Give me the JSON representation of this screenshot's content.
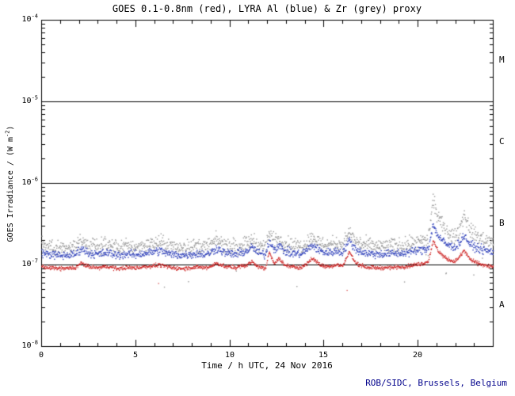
{
  "footer": "ROB/SIDC, Brussels, Belgium",
  "colors": {
    "background": "#ffffff",
    "axis": "#000000",
    "goes_red": "#cc2222",
    "lyra_al_blue": "#3344bb",
    "lyra_zr_grey": "#9a9a9a",
    "footer_text": "#00008b"
  },
  "chart_data": {
    "type": "scatter",
    "title": "GOES 0.1-0.8nm (red), LYRA Al (blue) & Zr (grey) proxy",
    "xlabel": "Time / h UTC, 24 Nov 2016",
    "ylabel": {
      "pre": "GOES Irradiance / (W m",
      "sup": "-2",
      "post": ")"
    },
    "xlim": [
      0,
      24
    ],
    "x_major_ticks": [
      0,
      5,
      10,
      15,
      20
    ],
    "x_minor_step_h": 1,
    "y_scale": "log",
    "y_exponent_range": [
      -8,
      -4
    ],
    "y_tick_exponents": [
      -4,
      -5,
      -6,
      -7,
      -8
    ],
    "goes_class_boundary_lines_exp": [
      -5,
      -6,
      -7
    ],
    "flare_classes": [
      {
        "label": "M",
        "mid_exp": -4.5
      },
      {
        "label": "C",
        "mid_exp": -5.5
      },
      {
        "label": "B",
        "mid_exp": -6.5
      },
      {
        "label": "A",
        "mid_exp": -7.5
      }
    ],
    "grid": false,
    "legend": "encoded in title colors",
    "series": [
      {
        "name": "LYRA Zr proxy",
        "color": "#9a9a9a",
        "jitter_log": 0.045,
        "step_h": 0.02,
        "dot": 1.4,
        "outlier_prob": 0.012,
        "keypoints": [
          [
            0,
            1.75e-07
          ],
          [
            0.5,
            1.68e-07
          ],
          [
            1,
            1.62e-07
          ],
          [
            1.8,
            1.68e-07
          ],
          [
            2.1,
            2e-07
          ],
          [
            2.5,
            1.75e-07
          ],
          [
            3,
            1.68e-07
          ],
          [
            3.5,
            1.78e-07
          ],
          [
            4,
            1.65e-07
          ],
          [
            4.5,
            1.7e-07
          ],
          [
            5,
            1.68e-07
          ],
          [
            5.5,
            1.75e-07
          ],
          [
            6.3,
            1.9e-07
          ],
          [
            6.8,
            1.7e-07
          ],
          [
            7.5,
            1.65e-07
          ],
          [
            8.2,
            1.72e-07
          ],
          [
            8.8,
            1.68e-07
          ],
          [
            9.3,
            2e-07
          ],
          [
            9.8,
            1.75e-07
          ],
          [
            10.3,
            1.7e-07
          ],
          [
            10.9,
            1.85e-07
          ],
          [
            11.2,
            2.05e-07
          ],
          [
            11.5,
            1.75e-07
          ],
          [
            11.9,
            1.68e-07
          ],
          [
            12.1,
            2.5e-07
          ],
          [
            12.35,
            1.95e-07
          ],
          [
            12.6,
            2.2e-07
          ],
          [
            12.9,
            1.85e-07
          ],
          [
            13.3,
            1.75e-07
          ],
          [
            13.8,
            1.7e-07
          ],
          [
            14.4,
            2.2e-07
          ],
          [
            14.8,
            1.85e-07
          ],
          [
            15.2,
            1.78e-07
          ],
          [
            15.7,
            1.85e-07
          ],
          [
            16.0,
            1.8e-07
          ],
          [
            16.35,
            2.5e-07
          ],
          [
            16.7,
            1.95e-07
          ],
          [
            17.2,
            1.75e-07
          ],
          [
            17.8,
            1.7e-07
          ],
          [
            18.5,
            1.72e-07
          ],
          [
            19.2,
            1.75e-07
          ],
          [
            19.8,
            1.85e-07
          ],
          [
            20.3,
            1.95e-07
          ],
          [
            20.55,
            2.1e-07
          ],
          [
            20.8,
            6.2e-07
          ],
          [
            21.1,
            3.6e-07
          ],
          [
            21.5,
            2.6e-07
          ],
          [
            21.9,
            2.2e-07
          ],
          [
            22.15,
            2.5e-07
          ],
          [
            22.45,
            4.2e-07
          ],
          [
            22.8,
            2.6e-07
          ],
          [
            23.2,
            2.2e-07
          ],
          [
            23.6,
            2e-07
          ],
          [
            24,
            1.9e-07
          ]
        ]
      },
      {
        "name": "LYRA Al proxy",
        "color": "#3344bb",
        "jitter_log": 0.025,
        "step_h": 0.02,
        "dot": 1.4,
        "outlier_prob": 0,
        "keypoints": [
          [
            0,
            1.4e-07
          ],
          [
            0.5,
            1.35e-07
          ],
          [
            1,
            1.3e-07
          ],
          [
            1.8,
            1.35e-07
          ],
          [
            2.1,
            1.6e-07
          ],
          [
            2.5,
            1.4e-07
          ],
          [
            3,
            1.35e-07
          ],
          [
            3.5,
            1.42e-07
          ],
          [
            4,
            1.32e-07
          ],
          [
            4.5,
            1.36e-07
          ],
          [
            5,
            1.34e-07
          ],
          [
            5.5,
            1.4e-07
          ],
          [
            6.3,
            1.5e-07
          ],
          [
            6.8,
            1.36e-07
          ],
          [
            7.5,
            1.32e-07
          ],
          [
            8.2,
            1.38e-07
          ],
          [
            8.8,
            1.35e-07
          ],
          [
            9.3,
            1.6e-07
          ],
          [
            9.8,
            1.4e-07
          ],
          [
            10.3,
            1.36e-07
          ],
          [
            10.9,
            1.48e-07
          ],
          [
            11.2,
            1.65e-07
          ],
          [
            11.5,
            1.4e-07
          ],
          [
            11.9,
            1.35e-07
          ],
          [
            12.1,
            2e-07
          ],
          [
            12.35,
            1.55e-07
          ],
          [
            12.6,
            1.75e-07
          ],
          [
            12.9,
            1.48e-07
          ],
          [
            13.3,
            1.4e-07
          ],
          [
            13.8,
            1.36e-07
          ],
          [
            14.4,
            1.75e-07
          ],
          [
            14.8,
            1.48e-07
          ],
          [
            15.2,
            1.42e-07
          ],
          [
            15.7,
            1.48e-07
          ],
          [
            16.0,
            1.44e-07
          ],
          [
            16.35,
            2e-07
          ],
          [
            16.7,
            1.55e-07
          ],
          [
            17.2,
            1.4e-07
          ],
          [
            17.8,
            1.36e-07
          ],
          [
            18.5,
            1.38e-07
          ],
          [
            19.2,
            1.4e-07
          ],
          [
            19.8,
            1.48e-07
          ],
          [
            20.3,
            1.55e-07
          ],
          [
            20.55,
            1.62e-07
          ],
          [
            20.8,
            3.1e-07
          ],
          [
            21.1,
            2.2e-07
          ],
          [
            21.5,
            1.8e-07
          ],
          [
            21.9,
            1.65e-07
          ],
          [
            22.15,
            1.8e-07
          ],
          [
            22.45,
            2.3e-07
          ],
          [
            22.8,
            1.75e-07
          ],
          [
            23.2,
            1.6e-07
          ],
          [
            23.6,
            1.5e-07
          ],
          [
            24,
            1.45e-07
          ]
        ]
      },
      {
        "name": "GOES 0.1-0.8nm",
        "color": "#cc2222",
        "jitter_log": 0.012,
        "step_h": 0.0167,
        "dot": 1.2,
        "outlier_prob": 0.003,
        "keypoints": [
          [
            0,
            9.5e-08
          ],
          [
            0.5,
            9.2e-08
          ],
          [
            1,
            9e-08
          ],
          [
            1.8,
            9.2e-08
          ],
          [
            2.1,
            1.05e-07
          ],
          [
            2.5,
            9.5e-08
          ],
          [
            3,
            9.2e-08
          ],
          [
            3.5,
            9.6e-08
          ],
          [
            4,
            9e-08
          ],
          [
            4.5,
            9.3e-08
          ],
          [
            5,
            9.2e-08
          ],
          [
            5.5,
            9.5e-08
          ],
          [
            6.3,
            1e-07
          ],
          [
            6.8,
            9.3e-08
          ],
          [
            7.5,
            9e-08
          ],
          [
            8.2,
            9.4e-08
          ],
          [
            8.8,
            9.2e-08
          ],
          [
            9.3,
            1.05e-07
          ],
          [
            9.8,
            9.5e-08
          ],
          [
            10.3,
            9.3e-08
          ],
          [
            10.9,
            1e-07
          ],
          [
            11.2,
            1.1e-07
          ],
          [
            11.5,
            9.5e-08
          ],
          [
            11.9,
            9e-08
          ],
          [
            12.1,
            1.45e-07
          ],
          [
            12.35,
            1.05e-07
          ],
          [
            12.6,
            1.2e-07
          ],
          [
            12.9,
            1e-07
          ],
          [
            13.3,
            9.5e-08
          ],
          [
            13.8,
            9.3e-08
          ],
          [
            14.4,
            1.2e-07
          ],
          [
            14.8,
            1e-07
          ],
          [
            15.2,
            9.6e-08
          ],
          [
            15.7,
            1e-07
          ],
          [
            16.0,
            9.7e-08
          ],
          [
            16.35,
            1.45e-07
          ],
          [
            16.7,
            1.05e-07
          ],
          [
            17.2,
            9.5e-08
          ],
          [
            17.8,
            9.2e-08
          ],
          [
            18.5,
            9.3e-08
          ],
          [
            19.2,
            9.5e-08
          ],
          [
            19.8,
            1e-07
          ],
          [
            20.3,
            1.05e-07
          ],
          [
            20.55,
            1.1e-07
          ],
          [
            20.8,
            1.95e-07
          ],
          [
            21.1,
            1.45e-07
          ],
          [
            21.5,
            1.2e-07
          ],
          [
            21.9,
            1.1e-07
          ],
          [
            22.15,
            1.2e-07
          ],
          [
            22.45,
            1.5e-07
          ],
          [
            22.8,
            1.15e-07
          ],
          [
            23.2,
            1.05e-07
          ],
          [
            23.6,
            9.8e-08
          ],
          [
            24,
            9.5e-08
          ]
        ]
      }
    ]
  }
}
